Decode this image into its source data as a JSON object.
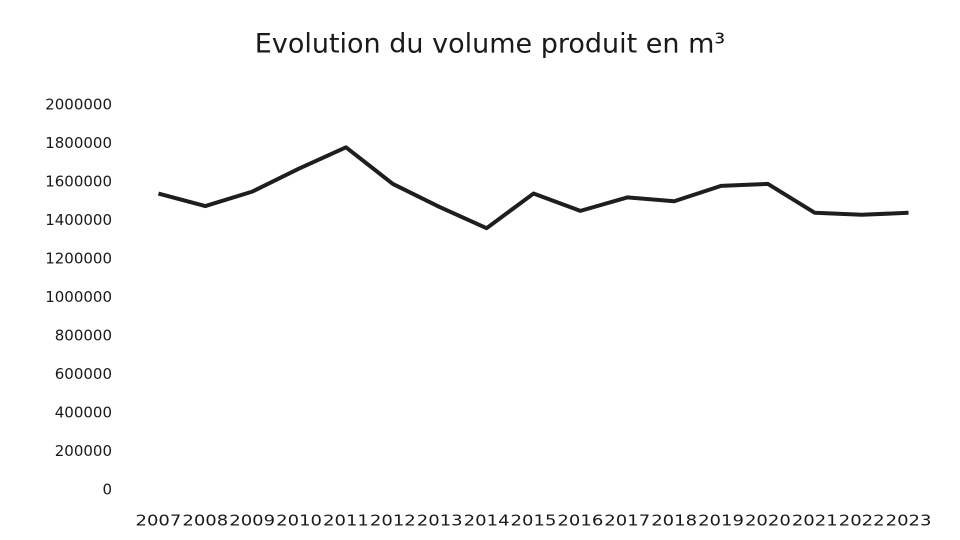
{
  "chart_data": {
    "type": "line",
    "title": "Evolution du volume produit en m³",
    "categories": [
      "2007",
      "2008",
      "2009",
      "2010",
      "2011",
      "2012",
      "2013",
      "2014",
      "2015",
      "2016",
      "2017",
      "2018",
      "2019",
      "2020",
      "2021",
      "2022",
      "2023"
    ],
    "values": [
      1540000,
      1475000,
      1550000,
      1670000,
      1780000,
      1590000,
      1470000,
      1360000,
      1540000,
      1450000,
      1520000,
      1500000,
      1580000,
      1590000,
      1440000,
      1430000,
      1440000
    ],
    "color": "#1e1e1e",
    "ylim": [
      0,
      2000000
    ],
    "yticks": [
      0,
      200000,
      400000,
      600000,
      800000,
      1000000,
      1200000,
      1400000,
      1600000,
      1800000,
      2000000
    ],
    "grid": false
  }
}
